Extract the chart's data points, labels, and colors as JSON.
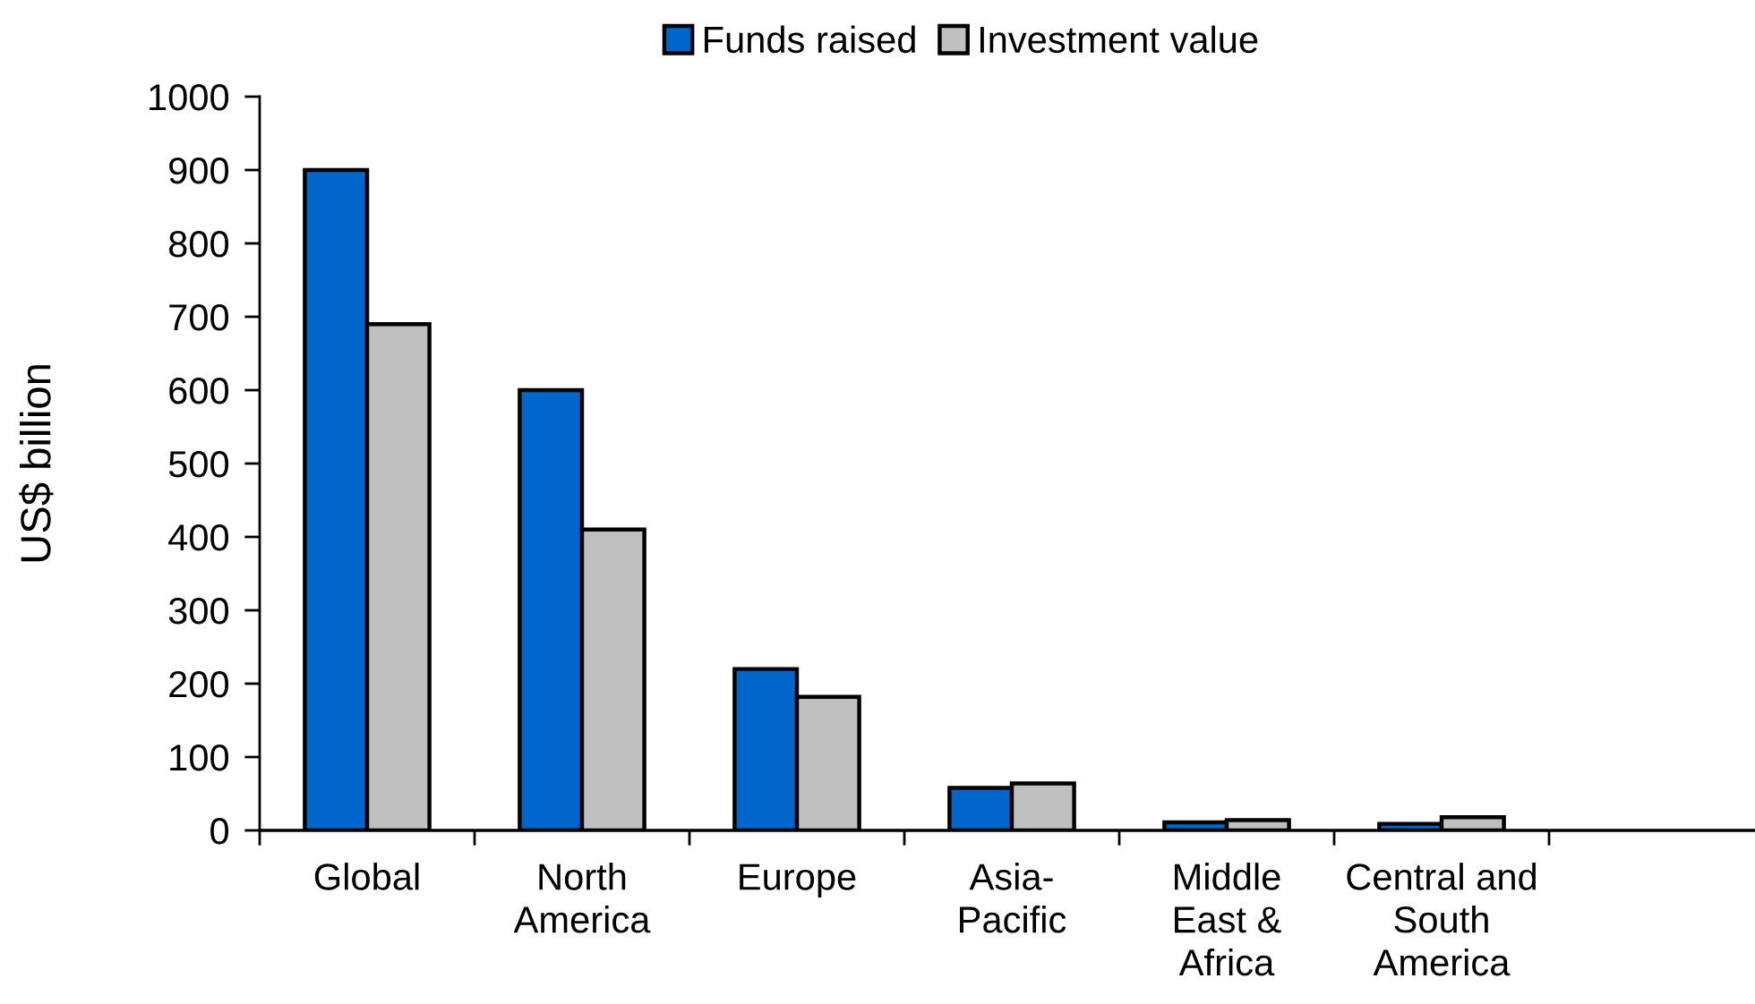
{
  "chart_data": {
    "type": "bar",
    "categories": [
      "Global",
      "North\nAmerica",
      "Europe",
      "Asia-\nPacific",
      "Middle\nEast &\nAfrica",
      "Central and\nSouth\nAmerica",
      null
    ],
    "series": [
      {
        "name": "Funds raised",
        "color": "#0066cc",
        "values": [
          900,
          600,
          220,
          58,
          11,
          9,
          null
        ]
      },
      {
        "name": "Investment value",
        "color": "#c0c0c0",
        "values": [
          690,
          410,
          182,
          64,
          14,
          18,
          null
        ]
      }
    ],
    "ylabel": "US$ billion",
    "ylim": [
      0,
      1000
    ],
    "yticks": [
      0,
      100,
      200,
      300,
      400,
      500,
      600,
      700,
      800,
      900,
      1000
    ],
    "legend": "top"
  }
}
